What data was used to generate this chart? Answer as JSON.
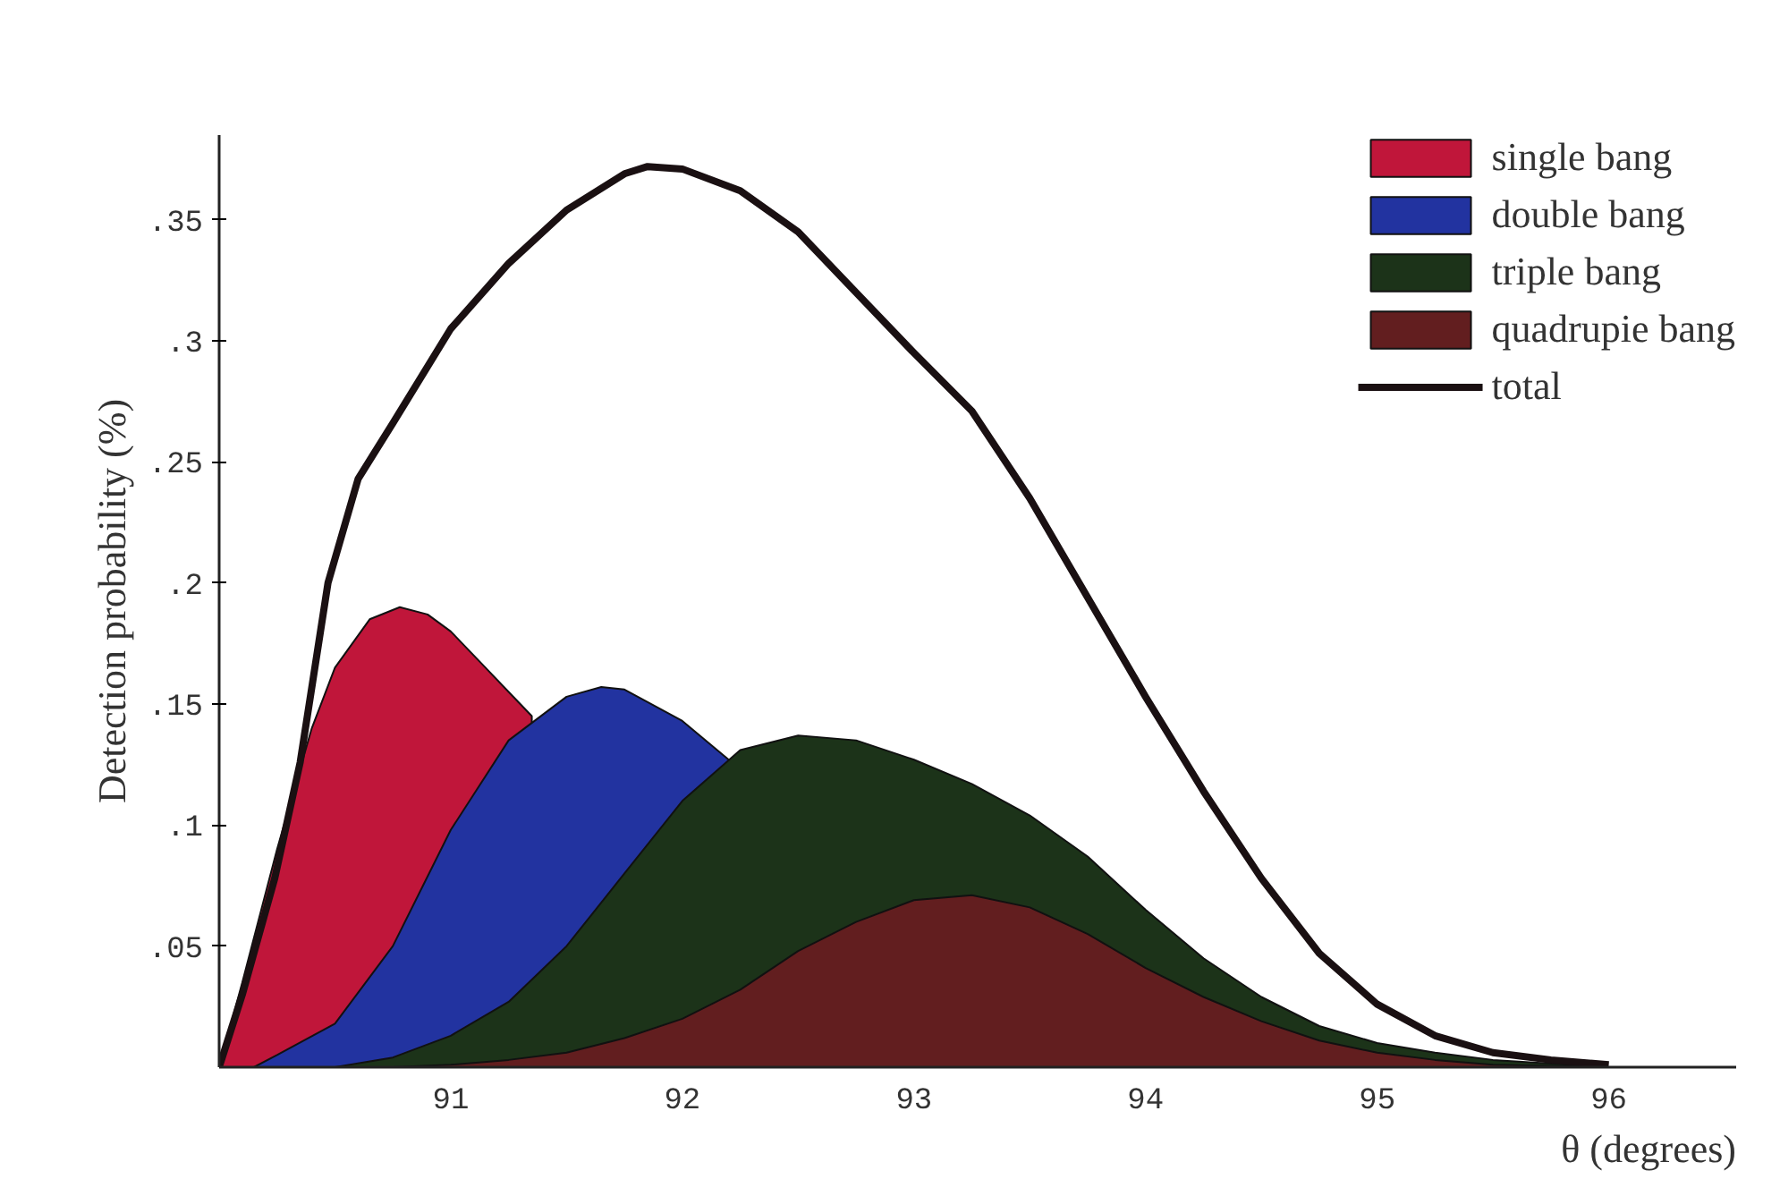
{
  "chart_data": {
    "type": "area",
    "ylabel": "Detection probability (%)",
    "xlabel": "θ (degrees)",
    "xlim": [
      90,
      96.55
    ],
    "ylim": [
      0,
      0.385
    ],
    "xticks": [
      91,
      92,
      93,
      94,
      95,
      96
    ],
    "yticks": [
      {
        "value": 0.05,
        "label": ".05"
      },
      {
        "value": 0.1,
        "label": ".1"
      },
      {
        "value": 0.15,
        "label": ".15"
      },
      {
        "value": 0.2,
        "label": ".2"
      },
      {
        "value": 0.25,
        "label": ".25"
      },
      {
        "value": 0.3,
        "label": ".3"
      },
      {
        "value": 0.35,
        "label": ".35"
      }
    ],
    "grid": false,
    "legend": "top right",
    "series": [
      {
        "name": "single bang",
        "color": "#c0163a",
        "x": [
          90,
          90.1,
          90.25,
          90.4,
          90.5,
          90.65,
          90.78,
          90.9,
          91,
          91.15,
          91.25,
          91.35
        ],
        "values": [
          0,
          0.035,
          0.09,
          0.14,
          0.165,
          0.185,
          0.19,
          0.187,
          0.18,
          0.165,
          0.155,
          0.145
        ]
      },
      {
        "name": "double bang",
        "color": "#2233a0",
        "x": [
          90.15,
          90.25,
          90.5,
          90.75,
          91,
          91.25,
          91.5,
          91.65,
          91.75,
          92,
          92.2
        ],
        "values": [
          0,
          0.005,
          0.018,
          0.05,
          0.098,
          0.135,
          0.153,
          0.157,
          0.156,
          0.143,
          0.127
        ]
      },
      {
        "name": "triple bang",
        "color": "#1c3319",
        "x": [
          90.5,
          90.75,
          91,
          91.25,
          91.5,
          91.75,
          92,
          92.25,
          92.5,
          92.75,
          93,
          93.25,
          93.5,
          93.75,
          94,
          94.25,
          94.5,
          94.75,
          95,
          95.25,
          95.5,
          96
        ],
        "values": [
          0,
          0.004,
          0.013,
          0.027,
          0.05,
          0.08,
          0.11,
          0.131,
          0.137,
          0.135,
          0.127,
          0.117,
          0.104,
          0.087,
          0.065,
          0.045,
          0.029,
          0.017,
          0.01,
          0.006,
          0.003,
          0
        ]
      },
      {
        "name": "quadrupie bang",
        "color": "#621e1f",
        "x": [
          90.75,
          91,
          91.25,
          91.5,
          91.75,
          92,
          92.25,
          92.5,
          92.75,
          93,
          93.25,
          93.5,
          93.75,
          94,
          94.25,
          94.5,
          94.75,
          95,
          95.25,
          95.5,
          96
        ],
        "values": [
          0,
          0.001,
          0.003,
          0.006,
          0.012,
          0.02,
          0.032,
          0.048,
          0.06,
          0.069,
          0.071,
          0.066,
          0.055,
          0.041,
          0.029,
          0.019,
          0.011,
          0.006,
          0.003,
          0.001,
          0
        ]
      },
      {
        "name": "total",
        "type": "line",
        "color": "#1a1012",
        "x": [
          90,
          90.1,
          90.24,
          90.35,
          90.47,
          90.6,
          90.75,
          91,
          91.25,
          91.5,
          91.75,
          91.85,
          92,
          92.25,
          92.5,
          92.75,
          93,
          93.25,
          93.5,
          93.75,
          94,
          94.25,
          94.5,
          94.75,
          95,
          95.25,
          95.5,
          95.75,
          96
        ],
        "values": [
          0,
          0.03,
          0.078,
          0.126,
          0.2,
          0.243,
          0.266,
          0.305,
          0.332,
          0.354,
          0.369,
          0.372,
          0.371,
          0.362,
          0.345,
          0.32,
          0.295,
          0.271,
          0.235,
          0.194,
          0.153,
          0.114,
          0.078,
          0.047,
          0.026,
          0.013,
          0.006,
          0.003,
          0.001
        ]
      }
    ]
  }
}
